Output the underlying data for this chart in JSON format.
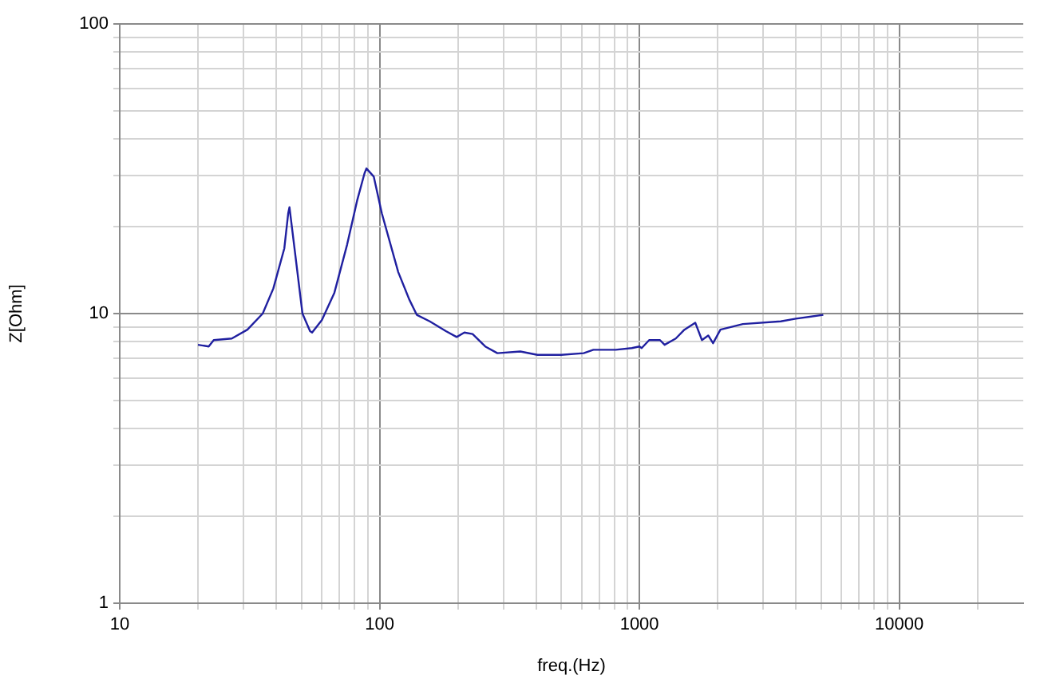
{
  "chart_data": {
    "type": "line",
    "xlabel": "freq.(Hz)",
    "ylabel": "Z[Ohm]",
    "log": "xy",
    "grid": true,
    "marker": "none",
    "line_style": "solid",
    "legend": false,
    "xlim": [
      10,
      30000
    ],
    "ylim": [
      1,
      100
    ],
    "xticks": [
      10,
      {
        "value": 20,
        "label": null
      },
      {
        "value": 30,
        "label": null
      },
      {
        "value": 40,
        "label": null
      },
      {
        "value": 50,
        "label": null
      },
      {
        "value": 60,
        "label": null
      },
      {
        "value": 70,
        "label": null
      },
      {
        "value": 80,
        "label": null
      },
      {
        "value": 90,
        "label": null
      },
      100,
      {
        "value": 200,
        "label": null
      },
      {
        "value": 300,
        "label": null
      },
      {
        "value": 400,
        "label": null
      },
      {
        "value": 500,
        "label": null
      },
      {
        "value": 600,
        "label": null
      },
      {
        "value": 700,
        "label": null
      },
      {
        "value": 800,
        "label": null
      },
      {
        "value": 900,
        "label": null
      },
      1000,
      {
        "value": 2000,
        "label": null
      },
      {
        "value": 3000,
        "label": null
      },
      {
        "value": 4000,
        "label": null
      },
      {
        "value": 5000,
        "label": null
      },
      {
        "value": 6000,
        "label": null
      },
      {
        "value": 7000,
        "label": null
      },
      {
        "value": 8000,
        "label": null
      },
      {
        "value": 9000,
        "label": null
      },
      10000,
      {
        "value": 20000,
        "label": null
      }
    ],
    "yticks": [
      1,
      {
        "value": 2,
        "label": null
      },
      {
        "value": 3,
        "label": null
      },
      {
        "value": 4,
        "label": null
      },
      {
        "value": 5,
        "label": null
      },
      {
        "value": 6,
        "label": null
      },
      {
        "value": 7,
        "label": null
      },
      {
        "value": 8,
        "label": null
      },
      {
        "value": 9,
        "label": null
      },
      10,
      {
        "value": 20,
        "label": null
      },
      {
        "value": 30,
        "label": null
      },
      {
        "value": 40,
        "label": null
      },
      {
        "value": 50,
        "label": null
      },
      {
        "value": 60,
        "label": null
      },
      {
        "value": 70,
        "label": null
      },
      {
        "value": 80,
        "label": null
      },
      {
        "value": 90,
        "label": null
      },
      100
    ],
    "x": [
      20,
      22,
      23,
      27,
      31,
      35.5,
      39,
      43,
      44.5,
      45,
      50.5,
      54,
      55,
      60,
      67,
      75,
      82,
      87.5,
      89,
      95,
      102,
      118,
      130,
      139,
      156,
      180,
      198,
      212,
      228,
      255,
      284,
      348,
      405,
      500,
      610,
      665,
      810,
      935,
      1000,
      1020,
      1090,
      1200,
      1250,
      1380,
      1490,
      1640,
      1740,
      1840,
      1920,
      2050,
      2500,
      3500,
      4000,
      5100
    ],
    "series": [
      {
        "color": "#2020a0",
        "values": [
          7.8,
          7.7,
          8.1,
          8.2,
          8.8,
          10,
          12.2,
          16.8,
          22.2,
          23.3,
          10,
          8.7,
          8.6,
          9.5,
          11.8,
          17.3,
          24.6,
          30.5,
          31.7,
          29.7,
          22.2,
          13.9,
          11.2,
          9.9,
          9.4,
          8.7,
          8.3,
          8.6,
          8.5,
          7.7,
          7.3,
          7.4,
          7.2,
          7.2,
          7.3,
          7.5,
          7.5,
          7.6,
          7.7,
          7.6,
          8.1,
          8.1,
          7.8,
          8.2,
          8.8,
          9.3,
          8.1,
          8.4,
          7.9,
          8.8,
          9.2,
          9.4,
          9.6,
          9.9
        ]
      }
    ]
  }
}
